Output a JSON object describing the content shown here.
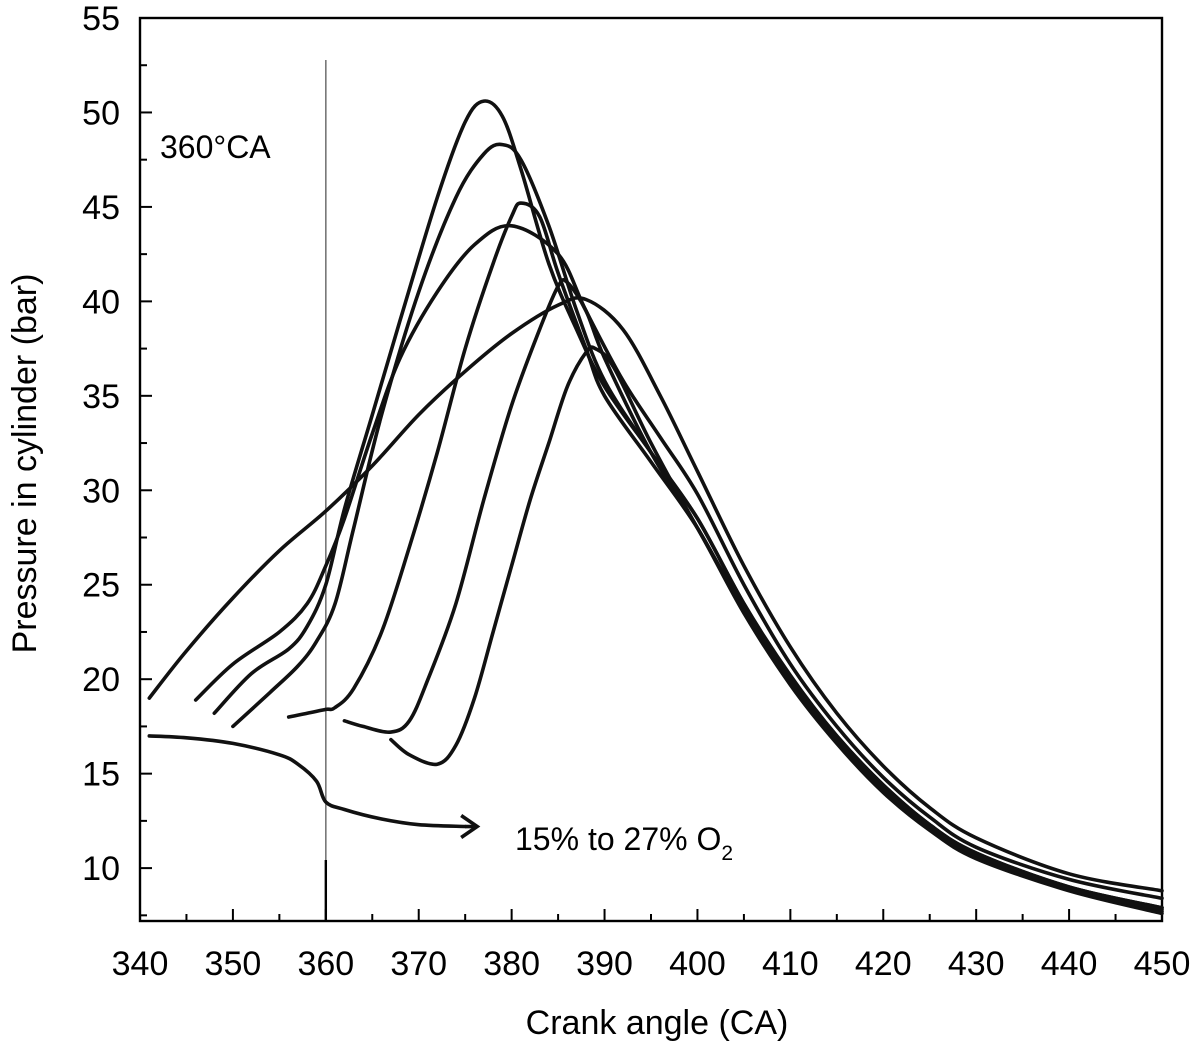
{
  "chart_data": {
    "type": "line",
    "title": "",
    "xlabel": "Crank angle (CA)",
    "ylabel": "Pressure in cylinder (bar)",
    "xlim": [
      340,
      450
    ],
    "ylim": [
      7.2,
      55
    ],
    "x_ticks": [
      340,
      350,
      360,
      370,
      380,
      390,
      400,
      410,
      420,
      430,
      440,
      450
    ],
    "y_ticks": [
      10,
      15,
      20,
      25,
      30,
      35,
      40,
      45,
      50,
      55
    ],
    "grid": false,
    "legend": "none",
    "reference_line": {
      "x": 360,
      "label": "360°CA"
    },
    "annotation": {
      "text": "15% to 27% O",
      "subscript": "2",
      "arrow_from": [
        360,
        13.5
      ],
      "arrow_to": [
        375,
        12.2
      ]
    },
    "series": [
      {
        "x": [
          341,
          345,
          350,
          355,
          360,
          365,
          370,
          375,
          380,
          385,
          388,
          392,
          396,
          400,
          405,
          410,
          415,
          420,
          425,
          430,
          440,
          450
        ],
        "values": [
          19.0,
          21.5,
          24.3,
          26.8,
          28.9,
          31.3,
          34.0,
          36.3,
          38.3,
          39.8,
          40.1,
          38.5,
          35.0,
          31.0,
          26.0,
          21.7,
          18.2,
          15.4,
          13.2,
          11.6,
          9.7,
          8.8
        ]
      },
      {
        "x": [
          346,
          350,
          355,
          358,
          360,
          362,
          365,
          368,
          372,
          376,
          380,
          385,
          388,
          392,
          396,
          400,
          405,
          410,
          415,
          420,
          425,
          430,
          440,
          450
        ],
        "values": [
          18.9,
          20.8,
          22.5,
          24.0,
          26.0,
          28.5,
          33.0,
          37.0,
          40.5,
          43.0,
          44.0,
          42.5,
          39.5,
          35.8,
          32.8,
          29.8,
          25.0,
          20.8,
          17.5,
          14.8,
          12.7,
          11.1,
          9.4,
          8.4
        ]
      },
      {
        "x": [
          348,
          352,
          356,
          358,
          360,
          362,
          365,
          368,
          372,
          375,
          377,
          379,
          381,
          384,
          387,
          390,
          395,
          400,
          405,
          410,
          415,
          420,
          425,
          430,
          440,
          450
        ],
        "values": [
          18.2,
          20.3,
          21.6,
          22.8,
          25.0,
          29.0,
          34.0,
          39.0,
          45.5,
          49.5,
          50.6,
          49.8,
          47.0,
          42.0,
          38.5,
          35.5,
          32.0,
          28.5,
          24.0,
          20.2,
          17.0,
          14.4,
          12.3,
          10.8,
          9.0,
          7.9
        ]
      },
      {
        "x": [
          350,
          354,
          357,
          359,
          361,
          363,
          366,
          370,
          374,
          377,
          379,
          381,
          384,
          387,
          390,
          395,
          400,
          405,
          410,
          415,
          420,
          425,
          430,
          440,
          450
        ],
        "values": [
          17.5,
          19.3,
          20.7,
          22.0,
          24.0,
          28.0,
          34.0,
          40.5,
          45.5,
          47.8,
          48.3,
          47.5,
          44.0,
          39.5,
          35.8,
          32.0,
          28.5,
          24.0,
          20.1,
          17.0,
          14.4,
          12.3,
          10.8,
          9.0,
          7.9
        ]
      },
      {
        "x": [
          356,
          358,
          360,
          361,
          363,
          366,
          369,
          372,
          375,
          378,
          380,
          381,
          383,
          385,
          388,
          390,
          395,
          400,
          405,
          410,
          415,
          420,
          425,
          430,
          440,
          450
        ],
        "values": [
          18.0,
          18.2,
          18.4,
          18.5,
          19.5,
          22.5,
          27.0,
          32.0,
          37.5,
          42.0,
          44.5,
          45.2,
          44.5,
          41.5,
          37.5,
          35.0,
          31.5,
          28.0,
          23.6,
          19.8,
          16.7,
          14.2,
          12.1,
          10.6,
          8.9,
          7.7
        ]
      },
      {
        "x": [
          362,
          364,
          367,
          369,
          371,
          374,
          377,
          380,
          383,
          385,
          386,
          388,
          390,
          395,
          400,
          405,
          410,
          415,
          420,
          425,
          430,
          440,
          450
        ],
        "values": [
          17.8,
          17.5,
          17.2,
          17.8,
          20.0,
          24.0,
          29.5,
          34.5,
          38.5,
          40.8,
          41.0,
          39.5,
          37.0,
          32.0,
          28.0,
          23.5,
          19.7,
          16.6,
          14.0,
          12.0,
          10.5,
          8.8,
          7.6
        ]
      },
      {
        "x": [
          367,
          369,
          372,
          374,
          376,
          378,
          380,
          382,
          384,
          386,
          388,
          389,
          391,
          395,
          400,
          405,
          410,
          415,
          420,
          425,
          430,
          440,
          450
        ],
        "values": [
          16.8,
          16.0,
          15.5,
          16.5,
          19.0,
          22.5,
          26.0,
          29.5,
          32.5,
          35.5,
          37.3,
          37.5,
          36.5,
          32.5,
          28.0,
          23.8,
          19.9,
          16.8,
          14.2,
          12.2,
          10.7,
          8.9,
          7.8
        ]
      },
      {
        "x": [
          341,
          345,
          350,
          355,
          357,
          359,
          360,
          362,
          366,
          370,
          375
        ],
        "values": [
          17.0,
          16.9,
          16.6,
          16.0,
          15.5,
          14.6,
          13.5,
          13.1,
          12.6,
          12.3,
          12.2
        ]
      }
    ]
  }
}
